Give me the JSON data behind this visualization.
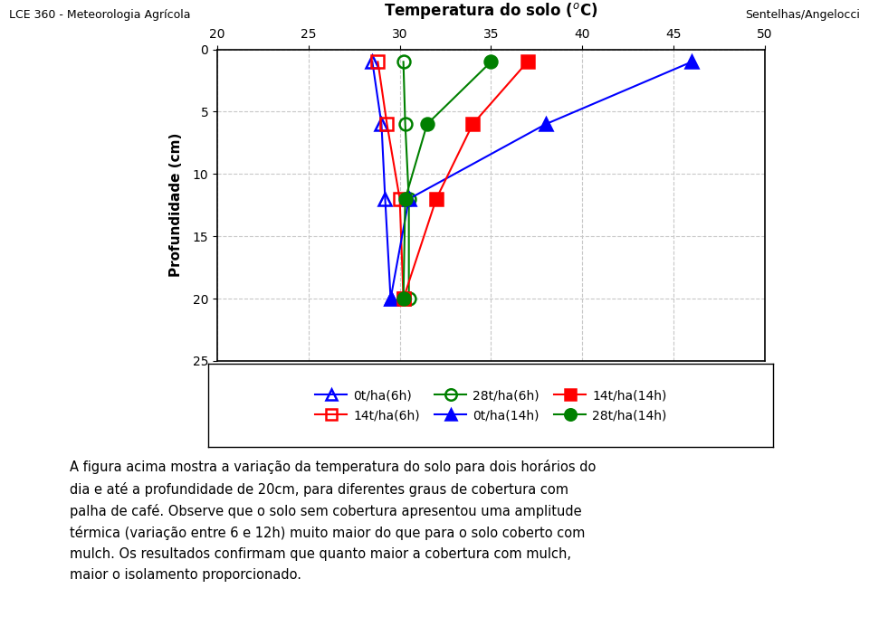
{
  "title": "Temperatura do solo (°C)",
  "title_superscript": "Temperatura do solo (",
  "ylabel": "Profundidade (cm)",
  "header_left": "LCE 360 - Meteorologia Agrícola",
  "header_right": "Sentelhas/Angelocci",
  "depths": [
    1,
    6,
    12,
    20
  ],
  "series_order": [
    "0t_ha_6h",
    "14t_ha_6h",
    "28t_ha_6h",
    "0t_ha_14h",
    "14t_ha_14h",
    "28t_ha_14h"
  ],
  "series": {
    "0t_ha_6h": {
      "label": "0t/ha(6h)",
      "temp": [
        28.5,
        29.0,
        29.2,
        29.5
      ],
      "color": "#0000ff",
      "marker": "^",
      "fillstyle": "none",
      "linestyle": "-"
    },
    "14t_ha_6h": {
      "label": "14t/ha(6h)",
      "temp": [
        28.8,
        29.3,
        30.0,
        30.2
      ],
      "color": "#ff0000",
      "marker": "s",
      "fillstyle": "none",
      "linestyle": "-"
    },
    "28t_ha_6h": {
      "label": "28t/ha(6h)",
      "temp": [
        30.2,
        30.3,
        30.5,
        30.5
      ],
      "color": "#008000",
      "marker": "o",
      "fillstyle": "none",
      "linestyle": "-"
    },
    "0t_ha_14h": {
      "label": "0t/ha(14h)",
      "temp": [
        46.0,
        38.0,
        30.5,
        29.5
      ],
      "color": "#0000ff",
      "marker": "^",
      "fillstyle": "full",
      "linestyle": "-"
    },
    "14t_ha_14h": {
      "label": "14t/ha(14h)",
      "temp": [
        37.0,
        34.0,
        32.0,
        30.2
      ],
      "color": "#ff0000",
      "marker": "s",
      "fillstyle": "full",
      "linestyle": "-"
    },
    "28t_ha_14h": {
      "label": "28t/ha(14h)",
      "temp": [
        35.0,
        31.5,
        30.3,
        30.2
      ],
      "color": "#008000",
      "marker": "o",
      "fillstyle": "full",
      "linestyle": "-"
    }
  },
  "xlim": [
    20,
    50
  ],
  "xticks": [
    20,
    25,
    30,
    35,
    40,
    45,
    50
  ],
  "ylim": [
    25,
    0
  ],
  "yticks": [
    0,
    5,
    10,
    15,
    20,
    25
  ],
  "grid_color": "#c8c8c8",
  "bg_color": "#ffffff",
  "legend_row1_keys": [
    "0t_ha_6h",
    "14t_ha_6h",
    "28t_ha_6h"
  ],
  "legend_row2_keys": [
    "0t_ha_14h",
    "14t_ha_14h",
    "28t_ha_14h"
  ],
  "text_block_lines": [
    "A figura acima mostra a variação da temperatura do solo para dois horários do dia e até a profundidade de 20cm, para diferentes graus de cobertura com",
    "palha de café. Observe que o solo sem cobertura apresentou uma amplitude térmica (variação entre 6 e 12h) muito maior do que para o solo coberto com",
    "mulch. Os resultados confirmam que quanto maior a cobertura com mulch, maior o isolamento proporcionado."
  ]
}
